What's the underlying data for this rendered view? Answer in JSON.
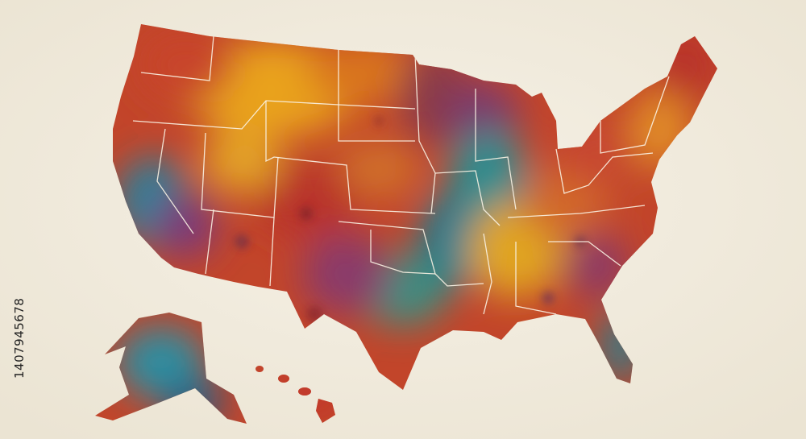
{
  "image_id": "1407945678"
}
